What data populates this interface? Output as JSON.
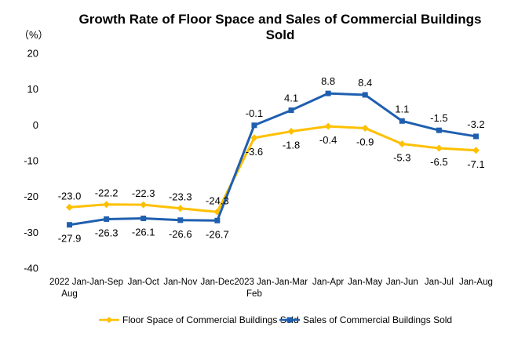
{
  "chart_data": {
    "type": "line",
    "title": "Growth Rate of Floor Space and Sales of Commercial Buildings Sold",
    "y_unit": "（%）",
    "ylim": [
      -40,
      20
    ],
    "yticks": [
      20,
      10,
      0,
      -10,
      -20,
      -30,
      -40
    ],
    "grid": false,
    "legend_position": "bottom",
    "categories": [
      [
        "2022 Jan-",
        "Aug"
      ],
      [
        "Jan-Sep"
      ],
      [
        "Jan-Oct"
      ],
      [
        "Jan-Nov"
      ],
      [
        "Jan-Dec"
      ],
      [
        "2023 Jan-",
        "Feb"
      ],
      [
        "Jan-Mar"
      ],
      [
        "Jan-Apr"
      ],
      [
        "Jan-May"
      ],
      [
        "Jan-Jun"
      ],
      [
        "Jan-Jul"
      ],
      [
        "Jan-Aug"
      ]
    ],
    "series": [
      {
        "name": "Floor Space of Commercial Buildings Sold",
        "color": "#FFC000",
        "marker": "diamond",
        "values": [
          -23.0,
          -22.2,
          -22.3,
          -23.3,
          -24.3,
          -3.6,
          -1.8,
          -0.4,
          -0.9,
          -5.3,
          -6.5,
          -7.1
        ],
        "labels": [
          "-23.0",
          "-22.2",
          "-22.3",
          "-23.3",
          "-24.3",
          "-3.6",
          "-1.8",
          "-0.4",
          "-0.9",
          "-5.3",
          "-6.5",
          "-7.1"
        ]
      },
      {
        "name": "Sales of Commercial Buildings Sold",
        "color": "#1F5FAF",
        "marker": "square",
        "values": [
          -27.9,
          -26.3,
          -26.1,
          -26.6,
          -26.7,
          -0.1,
          4.1,
          8.8,
          8.4,
          1.1,
          -1.5,
          -3.2
        ],
        "labels": [
          "-27.9",
          "-26.3",
          "-26.1",
          "-26.6",
          "-26.7",
          "-0.1",
          "4.1",
          "8.8",
          "8.4",
          "1.1",
          "-1.5",
          "-3.2"
        ]
      }
    ]
  }
}
